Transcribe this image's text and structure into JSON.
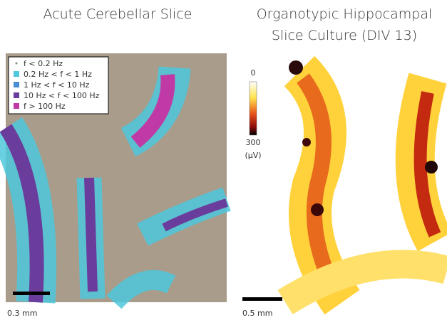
{
  "panels": [
    {
      "title": [
        "Acute Cerebellar Slice"
      ],
      "legend": [
        {
          "label": "f < 0.2 Hz",
          "color": "#8a8a8a"
        },
        {
          "label": "0.2 Hz < f < 1 Hz",
          "color": "#4ec8dc"
        },
        {
          "label": "1 Hz < f < 10 Hz",
          "color": "#4a8ed2"
        },
        {
          "label": "10 Hz < f < 100 Hz",
          "color": "#6a3c9c"
        },
        {
          "label": "f > 100 Hz",
          "color": "#c03aa6"
        }
      ],
      "scale_bar": "0.3 mm"
    },
    {
      "title": [
        "Organotypic Hippocampal",
        "Slice Culture (DIV 13)"
      ],
      "colorbar": {
        "min": "0",
        "max": "300",
        "unit": "(µV)"
      },
      "scale_bar": "0.5 mm"
    }
  ]
}
